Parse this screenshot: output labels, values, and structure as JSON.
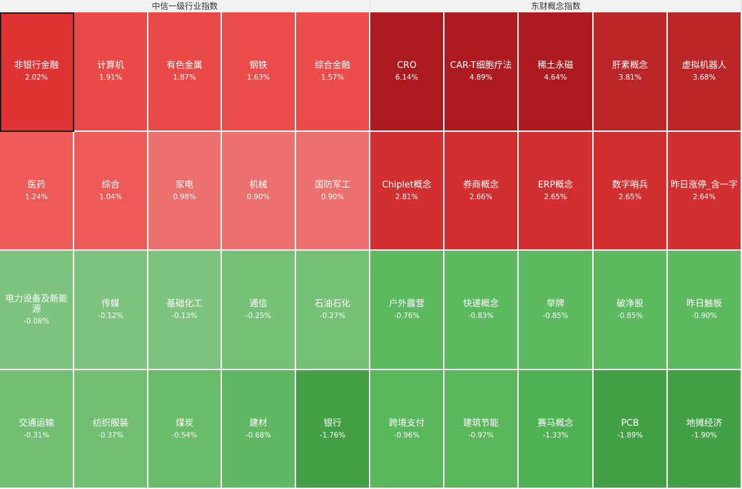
{
  "panels": [
    {
      "title": "中信一级行业指数",
      "tiles": [
        {
          "name": "非银行金融",
          "change": "2.02%",
          "color": "#e03434",
          "selected": true
        },
        {
          "name": "计算机",
          "change": "1.91%",
          "color": "#e94a48"
        },
        {
          "name": "有色金属",
          "change": "1.87%",
          "color": "#e94a48"
        },
        {
          "name": "钢铁",
          "change": "1.63%",
          "color": "#eb4c4a"
        },
        {
          "name": "综合金融",
          "change": "1.57%",
          "color": "#ec4d4b"
        },
        {
          "name": "医药",
          "change": "1.24%",
          "color": "#ee5a58"
        },
        {
          "name": "综合",
          "change": "1.04%",
          "color": "#ee5a58"
        },
        {
          "name": "家电",
          "change": "0.98%",
          "color": "#ec706e"
        },
        {
          "name": "机械",
          "change": "0.90%",
          "color": "#ec706e"
        },
        {
          "name": "国防军工",
          "change": "0.90%",
          "color": "#ec706e"
        },
        {
          "name": "电力设备及新能源",
          "change": "-0.08%",
          "color": "#7ec47f"
        },
        {
          "name": "传媒",
          "change": "-0.12%",
          "color": "#7ec47f"
        },
        {
          "name": "基础化工",
          "change": "-0.13%",
          "color": "#7ec47f"
        },
        {
          "name": "通信",
          "change": "-0.25%",
          "color": "#75c176"
        },
        {
          "name": "石油石化",
          "change": "-0.27%",
          "color": "#75c176"
        },
        {
          "name": "交通运输",
          "change": "-0.31%",
          "color": "#71bf72"
        },
        {
          "name": "纺织服装",
          "change": "-0.37%",
          "color": "#71bf72"
        },
        {
          "name": "煤炭",
          "change": "-0.54%",
          "color": "#6abc6b"
        },
        {
          "name": "建材",
          "change": "-0.68%",
          "color": "#60b862"
        },
        {
          "name": "银行",
          "change": "-1.76%",
          "color": "#43a047"
        }
      ]
    },
    {
      "title": "东财概念指数",
      "tiles": [
        {
          "name": "CRO",
          "change": "6.14%",
          "color": "#ad1a1f"
        },
        {
          "name": "CAR-T细胞疗法",
          "change": "4.89%",
          "color": "#ad1a1f"
        },
        {
          "name": "稀土永磁",
          "change": "4.64%",
          "color": "#ad1a1f"
        },
        {
          "name": "肝素概念",
          "change": "3.81%",
          "color": "#bb2628"
        },
        {
          "name": "虚拟机器人",
          "change": "3.68%",
          "color": "#bb2628"
        },
        {
          "name": "Chiplet概念",
          "change": "2.81%",
          "color": "#d22f30"
        },
        {
          "name": "券商概念",
          "change": "2.66%",
          "color": "#d22f30"
        },
        {
          "name": "ERP概念",
          "change": "2.65%",
          "color": "#d22f30"
        },
        {
          "name": "数字哨兵",
          "change": "2.65%",
          "color": "#d22f30"
        },
        {
          "name": "昨日涨停_含一字",
          "change": "2.64%",
          "color": "#d22f30"
        },
        {
          "name": "户外露营",
          "change": "-0.76%",
          "color": "#5db95f"
        },
        {
          "name": "快递概念",
          "change": "-0.83%",
          "color": "#5db95f"
        },
        {
          "name": "举牌",
          "change": "-0.85%",
          "color": "#5db95f"
        },
        {
          "name": "破净股",
          "change": "-0.85%",
          "color": "#5db95f"
        },
        {
          "name": "昨日触板",
          "change": "-0.90%",
          "color": "#5db95f"
        },
        {
          "name": "跨境支付",
          "change": "-0.96%",
          "color": "#5ab75c"
        },
        {
          "name": "建筑节能",
          "change": "-0.97%",
          "color": "#5ab75c"
        },
        {
          "name": "赛马概念",
          "change": "-1.33%",
          "color": "#4eb152"
        },
        {
          "name": "PCB",
          "change": "-1.89%",
          "color": "#43a047"
        },
        {
          "name": "地摊经济",
          "change": "-1.90%",
          "color": "#43a047"
        }
      ]
    }
  ]
}
